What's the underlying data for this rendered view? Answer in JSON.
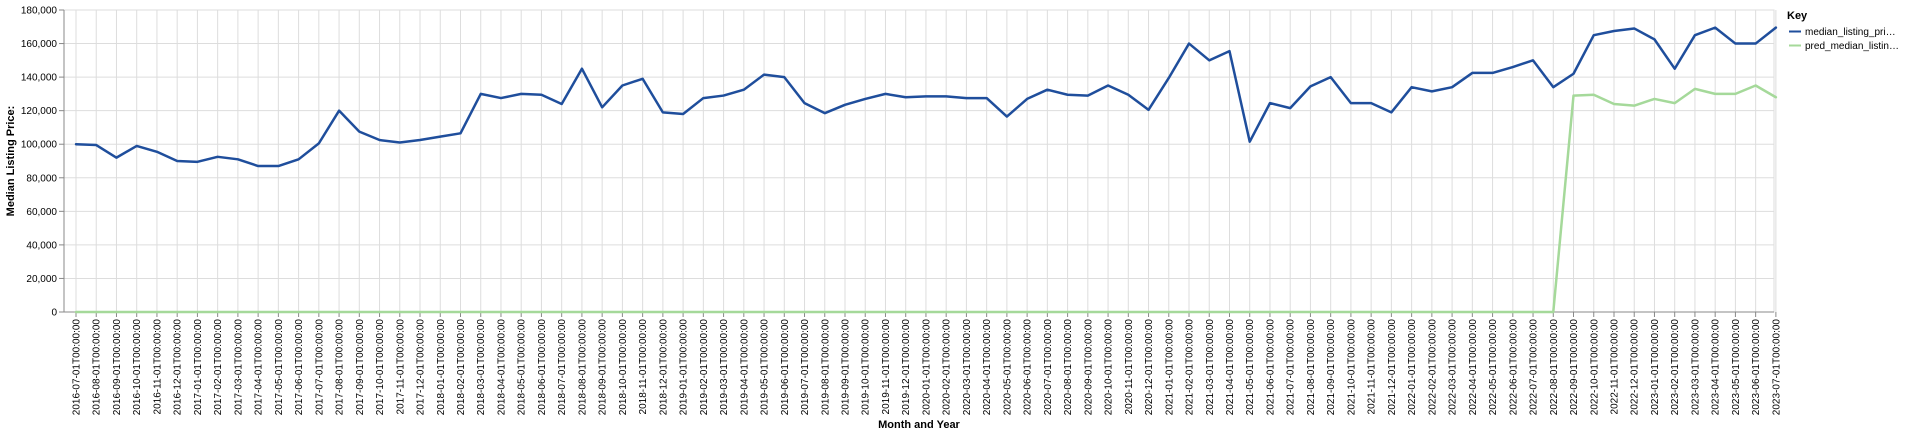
{
  "chart_data": {
    "type": "line",
    "xlabel": "Month and Year",
    "ylabel": "Median Listing Price:",
    "ylim": [
      0,
      180000
    ],
    "yticks": [
      "0",
      "20,000",
      "40,000",
      "60,000",
      "80,000",
      "100,000",
      "120,000",
      "140,000",
      "160,000",
      "180,000"
    ],
    "grid": true,
    "legend": {
      "title": "Key",
      "placement": "top-right",
      "entries": [
        "median_listing_pri…",
        "pred_median_listin…"
      ]
    },
    "x": [
      "2016-07-01T00:00:00",
      "2016-08-01T00:00:00",
      "2016-09-01T00:00:00",
      "2016-10-01T00:00:00",
      "2016-11-01T00:00:00",
      "2016-12-01T00:00:00",
      "2017-01-01T00:00:00",
      "2017-02-01T00:00:00",
      "2017-03-01T00:00:00",
      "2017-04-01T00:00:00",
      "2017-05-01T00:00:00",
      "2017-06-01T00:00:00",
      "2017-07-01T00:00:00",
      "2017-08-01T00:00:00",
      "2017-09-01T00:00:00",
      "2017-10-01T00:00:00",
      "2017-11-01T00:00:00",
      "2017-12-01T00:00:00",
      "2018-01-01T00:00:00",
      "2018-02-01T00:00:00",
      "2018-03-01T00:00:00",
      "2018-04-01T00:00:00",
      "2018-05-01T00:00:00",
      "2018-06-01T00:00:00",
      "2018-07-01T00:00:00",
      "2018-08-01T00:00:00",
      "2018-09-01T00:00:00",
      "2018-10-01T00:00:00",
      "2018-11-01T00:00:00",
      "2018-12-01T00:00:00",
      "2019-01-01T00:00:00",
      "2019-02-01T00:00:00",
      "2019-03-01T00:00:00",
      "2019-04-01T00:00:00",
      "2019-05-01T00:00:00",
      "2019-06-01T00:00:00",
      "2019-07-01T00:00:00",
      "2019-08-01T00:00:00",
      "2019-09-01T00:00:00",
      "2019-10-01T00:00:00",
      "2019-11-01T00:00:00",
      "2019-12-01T00:00:00",
      "2020-01-01T00:00:00",
      "2020-02-01T00:00:00",
      "2020-03-01T00:00:00",
      "2020-04-01T00:00:00",
      "2020-05-01T00:00:00",
      "2020-06-01T00:00:00",
      "2020-07-01T00:00:00",
      "2020-08-01T00:00:00",
      "2020-09-01T00:00:00",
      "2020-10-01T00:00:00",
      "2020-11-01T00:00:00",
      "2020-12-01T00:00:00",
      "2021-01-01T00:00:00",
      "2021-02-01T00:00:00",
      "2021-03-01T00:00:00",
      "2021-04-01T00:00:00",
      "2021-05-01T00:00:00",
      "2021-06-01T00:00:00",
      "2021-07-01T00:00:00",
      "2021-08-01T00:00:00",
      "2021-09-01T00:00:00",
      "2021-10-01T00:00:00",
      "2021-11-01T00:00:00",
      "2021-12-01T00:00:00",
      "2022-01-01T00:00:00",
      "2022-02-01T00:00:00",
      "2022-03-01T00:00:00",
      "2022-04-01T00:00:00",
      "2022-05-01T00:00:00",
      "2022-06-01T00:00:00",
      "2022-07-01T00:00:00",
      "2022-08-01T00:00:00",
      "2022-09-01T00:00:00",
      "2022-10-01T00:00:00",
      "2022-11-01T00:00:00",
      "2022-12-01T00:00:00",
      "2023-01-01T00:00:00",
      "2023-02-01T00:00:00",
      "2023-03-01T00:00:00",
      "2023-04-01T00:00:00",
      "2023-05-01T00:00:00",
      "2023-06-01T00:00:00",
      "2023-07-01T00:00:00"
    ],
    "series": [
      {
        "name": "median_listing_pri…",
        "color": "#1f4e9c",
        "values": [
          100000,
          99500,
          92000,
          99000,
          95500,
          90000,
          89500,
          92500,
          91000,
          87000,
          87000,
          91000,
          100500,
          120000,
          107500,
          102500,
          101000,
          102500,
          104500,
          106500,
          130000,
          127500,
          130000,
          129500,
          124000,
          145000,
          122000,
          135000,
          139000,
          119000,
          118000,
          127500,
          129000,
          132500,
          141500,
          140000,
          124500,
          118500,
          123500,
          127000,
          130000,
          128000,
          128500,
          128500,
          127500,
          127500,
          116500,
          127000,
          132500,
          129500,
          129000,
          135000,
          129500,
          120500,
          139500,
          160000,
          150000,
          155500,
          101500,
          124500,
          121500,
          134500,
          140000,
          124500,
          124500,
          119000,
          134000,
          131500,
          134000,
          142500,
          142500,
          146000,
          150000,
          134000,
          142000,
          165000,
          167500,
          169000,
          162500,
          145000,
          165000,
          169500,
          160000,
          160000,
          169500
        ]
      },
      {
        "name": "pred_median_listin…",
        "color": "#a5d99a",
        "values": [
          0,
          0,
          0,
          0,
          0,
          0,
          0,
          0,
          0,
          0,
          0,
          0,
          0,
          0,
          0,
          0,
          0,
          0,
          0,
          0,
          0,
          0,
          0,
          0,
          0,
          0,
          0,
          0,
          0,
          0,
          0,
          0,
          0,
          0,
          0,
          0,
          0,
          0,
          0,
          0,
          0,
          0,
          0,
          0,
          0,
          0,
          0,
          0,
          0,
          0,
          0,
          0,
          0,
          0,
          0,
          0,
          0,
          0,
          0,
          0,
          0,
          0,
          0,
          0,
          0,
          0,
          0,
          0,
          0,
          0,
          0,
          0,
          0,
          0,
          129000,
          129500,
          124000,
          123000,
          127000,
          124500,
          133000,
          130000,
          130000,
          135000,
          128000
        ]
      }
    ]
  }
}
